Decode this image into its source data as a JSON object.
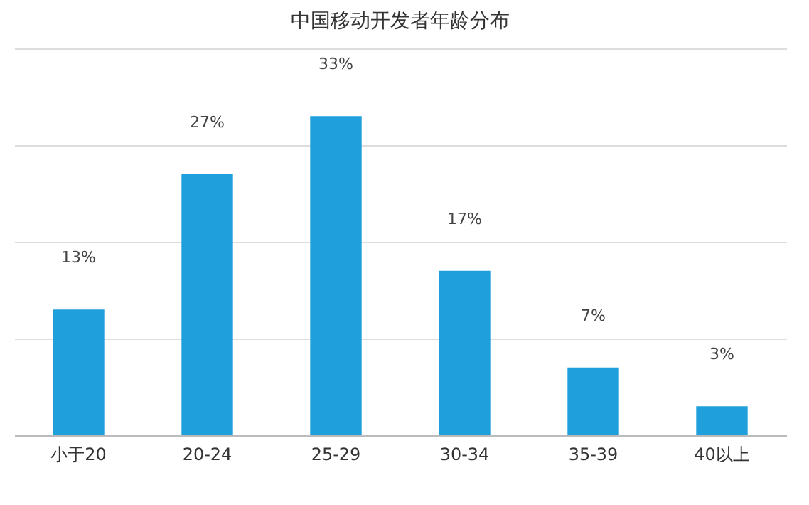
{
  "chart_data": {
    "type": "bar",
    "title": "中国移动开发者年龄分布",
    "categories": [
      "小于20",
      "20-24",
      "25-29",
      "30-34",
      "35-39",
      "40以上"
    ],
    "values": [
      13,
      27,
      33,
      17,
      7,
      3
    ],
    "value_labels": [
      "13%",
      "27%",
      "33%",
      "17%",
      "7%",
      "3%"
    ],
    "color": "#1fa0dc",
    "ylim": [
      0,
      40
    ],
    "yticks": [
      {
        "value": 0,
        "label": null
      },
      {
        "value": 10,
        "label": null
      },
      {
        "value": 20,
        "label": null
      },
      {
        "value": 30,
        "label": null
      },
      {
        "value": 40,
        "label": null
      }
    ],
    "grid": "y",
    "tick_labels": "x"
  }
}
